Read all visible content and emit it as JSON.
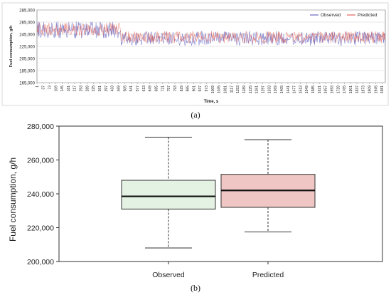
{
  "chart_data": [
    {
      "type": "line",
      "panel_label": "(a)",
      "xlabel": "Time, s",
      "ylabel": "Fuel consumption, g/h",
      "ylim": [
        165000,
        285000
      ],
      "yticks": [
        "285,000",
        "265,000",
        "245,000",
        "225,000",
        "205,000",
        "185,000",
        "165,000"
      ],
      "xlim": [
        1,
        2000
      ],
      "xticks": [
        "1",
        "37",
        "73",
        "109",
        "145",
        "181",
        "217",
        "253",
        "289",
        "325",
        "361",
        "397",
        "433",
        "469",
        "505",
        "541",
        "577",
        "613",
        "649",
        "685",
        "721",
        "757",
        "793",
        "829",
        "865",
        "901",
        "937",
        "973",
        "1009",
        "1045",
        "1081",
        "1117",
        "1153",
        "1189",
        "1225",
        "1261",
        "1297",
        "1333",
        "1369",
        "1405",
        "1441",
        "1477",
        "1513",
        "1549",
        "1585",
        "1621",
        "1657",
        "1693",
        "1729",
        "1765",
        "1801",
        "1837",
        "1873",
        "1909",
        "1945",
        "1981"
      ],
      "legend_position": "top-right",
      "series": [
        {
          "name": "Observed",
          "color": "#6b6bc4",
          "segments": [
            {
              "x": [
                1,
                480
              ],
              "mean": 252000,
              "spread": 14000
            },
            {
              "x": [
                480,
                2000
              ],
              "mean": 238000,
              "spread": 12000
            }
          ]
        },
        {
          "name": "Predicted",
          "color": "#e0655a",
          "segments": [
            {
              "x": [
                1,
                480
              ],
              "mean": 253000,
              "spread": 11000
            },
            {
              "x": [
                480,
                2000
              ],
              "mean": 240000,
              "spread": 10000
            }
          ]
        }
      ]
    },
    {
      "type": "box",
      "panel_label": "(b)",
      "ylabel": "Fuel consumption, g/h",
      "ylim": [
        200000,
        280000
      ],
      "yticks": [
        "200,000",
        "220,000",
        "240,000",
        "260,000",
        "280,000"
      ],
      "categories": [
        "Observed",
        "Predicted"
      ],
      "boxes": [
        {
          "category": "Observed",
          "min": 208000,
          "q1": 231000,
          "median": 238500,
          "q3": 248000,
          "max": 273500,
          "fill": "#e3f2e3"
        },
        {
          "category": "Predicted",
          "min": 217500,
          "q1": 232000,
          "median": 242000,
          "q3": 251500,
          "max": 272000,
          "fill": "#efc6c4"
        }
      ]
    }
  ]
}
